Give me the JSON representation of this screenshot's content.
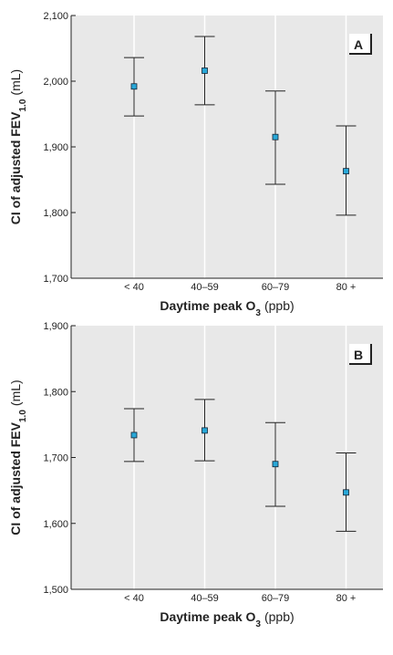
{
  "chart_data": [
    {
      "type": "errorbar",
      "panel": "A",
      "categories": [
        "< 40",
        "40–59",
        "60–79",
        "80 +"
      ],
      "ylabel": "CI of adjusted FEV",
      "ylabel_sub": "1.0",
      "ylabel_unit": "(mL)",
      "xlabel": "Daytime peak O",
      "xlabel_sub": "3",
      "xlabel_unit": "(ppb)",
      "values": [
        1992,
        2016,
        1915,
        1863
      ],
      "lower": [
        1947,
        1964,
        1843,
        1796
      ],
      "upper": [
        2036,
        2068,
        1985,
        1932
      ],
      "color": "#29a8d8",
      "ylim": [
        1700,
        2100
      ],
      "yticks": [
        {
          "value": 1700,
          "label": "1,700"
        },
        {
          "value": 1800,
          "label": "1,800"
        },
        {
          "value": 1900,
          "label": "1,900"
        },
        {
          "value": 2000,
          "label": "2,000"
        },
        {
          "value": 2100,
          "label": "2,100"
        }
      ]
    },
    {
      "type": "errorbar",
      "panel": "B",
      "categories": [
        "< 40",
        "40–59",
        "60–79",
        "80 +"
      ],
      "ylabel": "CI of adjusted FEV",
      "ylabel_sub": "1.0",
      "ylabel_unit": "(mL)",
      "xlabel": "Daytime peak O",
      "xlabel_sub": "3",
      "xlabel_unit": "(ppb)",
      "values": [
        1734,
        1741,
        1690,
        1647
      ],
      "lower": [
        1694,
        1695,
        1626,
        1588
      ],
      "upper": [
        1774,
        1788,
        1753,
        1707
      ],
      "color": "#29a8d8",
      "ylim": [
        1500,
        1900
      ],
      "yticks": [
        {
          "value": 1500,
          "label": "1,500"
        },
        {
          "value": 1600,
          "label": "1,600"
        },
        {
          "value": 1700,
          "label": "1,700"
        },
        {
          "value": 1800,
          "label": "1,800"
        },
        {
          "value": 1900,
          "label": "1,900"
        }
      ]
    }
  ]
}
